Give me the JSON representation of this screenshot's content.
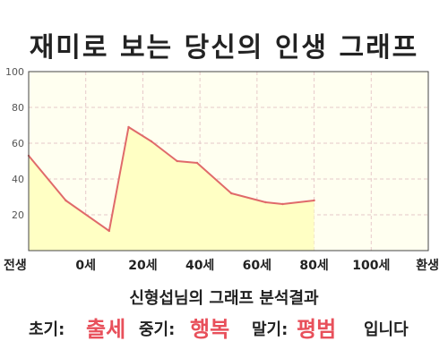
{
  "title": "재미로 보는 당신의 인생 그래프",
  "subtitle": "신형섭님의 그래프 분석결과",
  "summary": {
    "early_label": "초기:",
    "early_value": "출세",
    "mid_label": "중기:",
    "mid_value": "행복",
    "late_label": "말기:",
    "late_value": "평범",
    "ending": "입니다"
  },
  "colors": {
    "line": "#e06a6a",
    "fill": "#ffffc4",
    "accent": "#e8505b",
    "grid": "#e6c9c9"
  },
  "chart_data": {
    "type": "area",
    "x_tick_labels": [
      "전생",
      "0세",
      "20세",
      "40세",
      "60세",
      "80세",
      "100세",
      "환생"
    ],
    "y_ticks": [
      20,
      40,
      60,
      80,
      100
    ],
    "ylim": [
      0,
      100
    ],
    "grid": true,
    "points": [
      {
        "x": 0,
        "y": 53
      },
      {
        "x": 0.65,
        "y": 28
      },
      {
        "x": 1.41,
        "y": 11
      },
      {
        "x": 1.75,
        "y": 69
      },
      {
        "x": 2.15,
        "y": 61
      },
      {
        "x": 2.6,
        "y": 50
      },
      {
        "x": 2.95,
        "y": 49
      },
      {
        "x": 3.55,
        "y": 32
      },
      {
        "x": 4.15,
        "y": 27
      },
      {
        "x": 4.45,
        "y": 26
      },
      {
        "x": 5,
        "y": 28
      }
    ]
  }
}
